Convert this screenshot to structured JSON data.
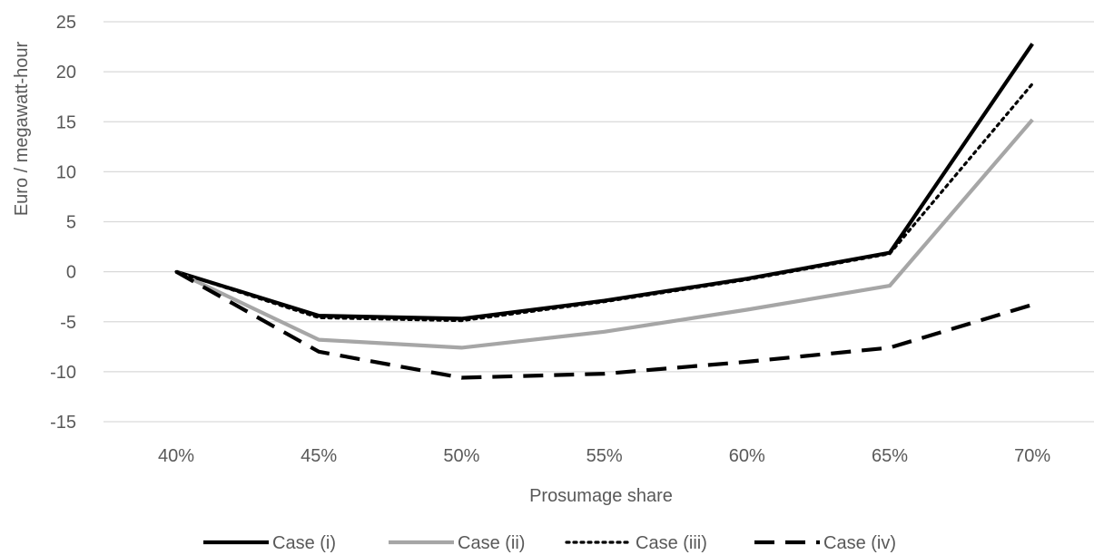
{
  "chart_data": {
    "type": "line",
    "title": "",
    "xlabel": "Prosumage share",
    "ylabel": "Euro / megawatt-hour",
    "categories": [
      "40%",
      "45%",
      "50%",
      "55%",
      "60%",
      "65%",
      "70%"
    ],
    "ylim": [
      -15,
      25
    ],
    "yticks": [
      -15,
      -10,
      -5,
      0,
      5,
      10,
      15,
      20,
      25
    ],
    "grid": true,
    "legend": "bottom",
    "series": [
      {
        "name": "Case (i)",
        "values": [
          0,
          -4.4,
          -4.7,
          -2.9,
          -0.7,
          1.9,
          22.8
        ],
        "color": "#000000",
        "dash": "solid"
      },
      {
        "name": "Case (ii)",
        "values": [
          0,
          -6.8,
          -7.6,
          -6.0,
          -3.8,
          -1.4,
          15.2
        ],
        "color": "#a6a6a6",
        "dash": "solid"
      },
      {
        "name": "Case (iii)",
        "values": [
          0,
          -4.6,
          -4.9,
          -3.0,
          -0.8,
          1.8,
          18.8
        ],
        "color": "#000000",
        "dash": "dotted"
      },
      {
        "name": "Case (iv)",
        "values": [
          0,
          -8.0,
          -10.6,
          -10.2,
          -9.0,
          -7.6,
          -3.3
        ],
        "color": "#000000",
        "dash": "dashed"
      }
    ]
  }
}
